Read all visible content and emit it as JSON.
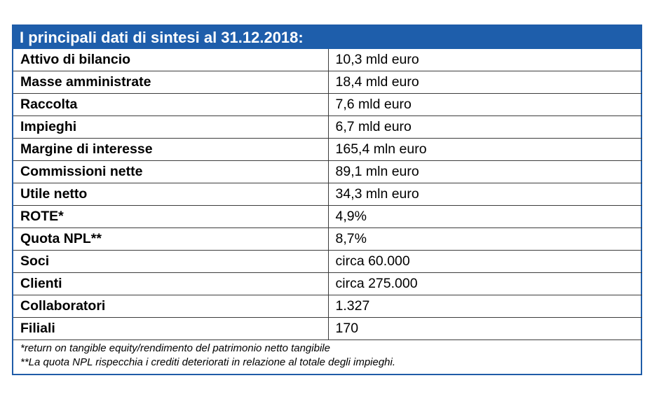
{
  "title": "I principali dati di sintesi al 31.12.2018:",
  "rows": [
    {
      "label": "Attivo di bilancio",
      "value": "10,3 mld euro"
    },
    {
      "label": "Masse amministrate",
      "value": "18,4 mld euro"
    },
    {
      "label": "Raccolta",
      "value": "7,6 mld euro"
    },
    {
      "label": "Impieghi",
      "value": "6,7 mld euro"
    },
    {
      "label": "Margine di interesse",
      "value": "165,4 mln euro"
    },
    {
      "label": "Commissioni nette",
      "value": "89,1 mln euro"
    },
    {
      "label": "Utile netto",
      "value": "34,3 mln euro"
    },
    {
      "label": "ROTE*",
      "value": "4,9%"
    },
    {
      "label": "Quota NPL**",
      "value": "8,7%"
    },
    {
      "label": "Soci",
      "value": "circa 60.000"
    },
    {
      "label": "Clienti",
      "value": "circa 275.000"
    },
    {
      "label": "Collaboratori",
      "value": "1.327"
    },
    {
      "label": "Filiali",
      "value": "170"
    }
  ],
  "footnotes": [
    "*return on tangible equity/rendimento del patrimonio netto tangibile",
    "**La quota NPL rispecchia i crediti deteriorati in relazione al totale degli impieghi."
  ],
  "colors": {
    "header_background": "#1e5eab",
    "header_text": "#ffffff",
    "border": "#1f5ca8"
  }
}
